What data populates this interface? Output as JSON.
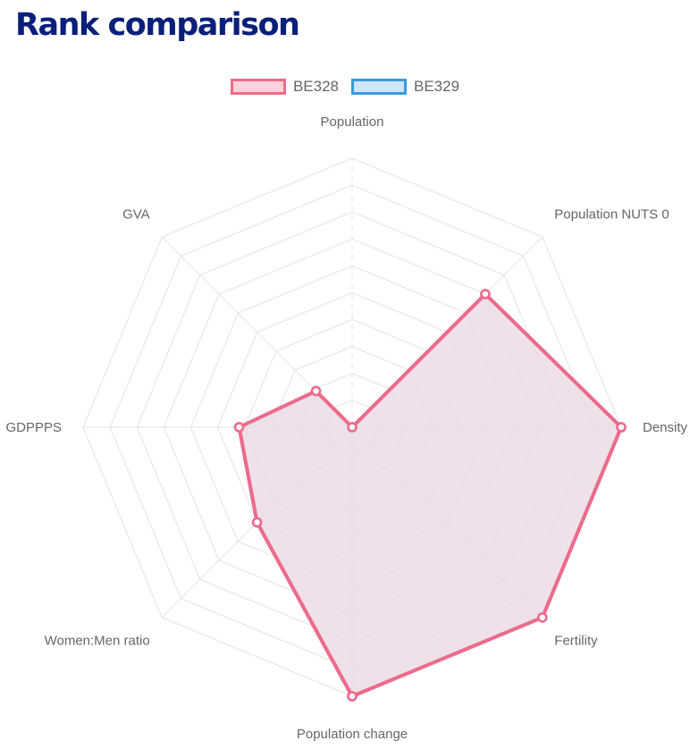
{
  "title": "Rank comparison",
  "chart_data": {
    "type": "radar",
    "title": "Rank comparison",
    "axes": [
      "Population",
      "Population NUTS 0",
      "Density",
      "Fertility",
      "Population change",
      "Women:Men ratio",
      "GDPPPS",
      "GVA"
    ],
    "rlim": [
      0,
      10
    ],
    "grid": true,
    "legend_position": "top",
    "series": [
      {
        "name": "BE328",
        "values": [
          0,
          7,
          10,
          10,
          10,
          5,
          4.2,
          1.9
        ],
        "border_color": "#f06a8a",
        "fill_color": "#f8d3dc"
      },
      {
        "name": "BE329",
        "values": [
          0,
          7,
          10,
          10,
          10,
          5,
          4.2,
          1.9
        ],
        "border_color": "#3a9ad9",
        "fill_color": "#cfe6f6"
      }
    ]
  }
}
